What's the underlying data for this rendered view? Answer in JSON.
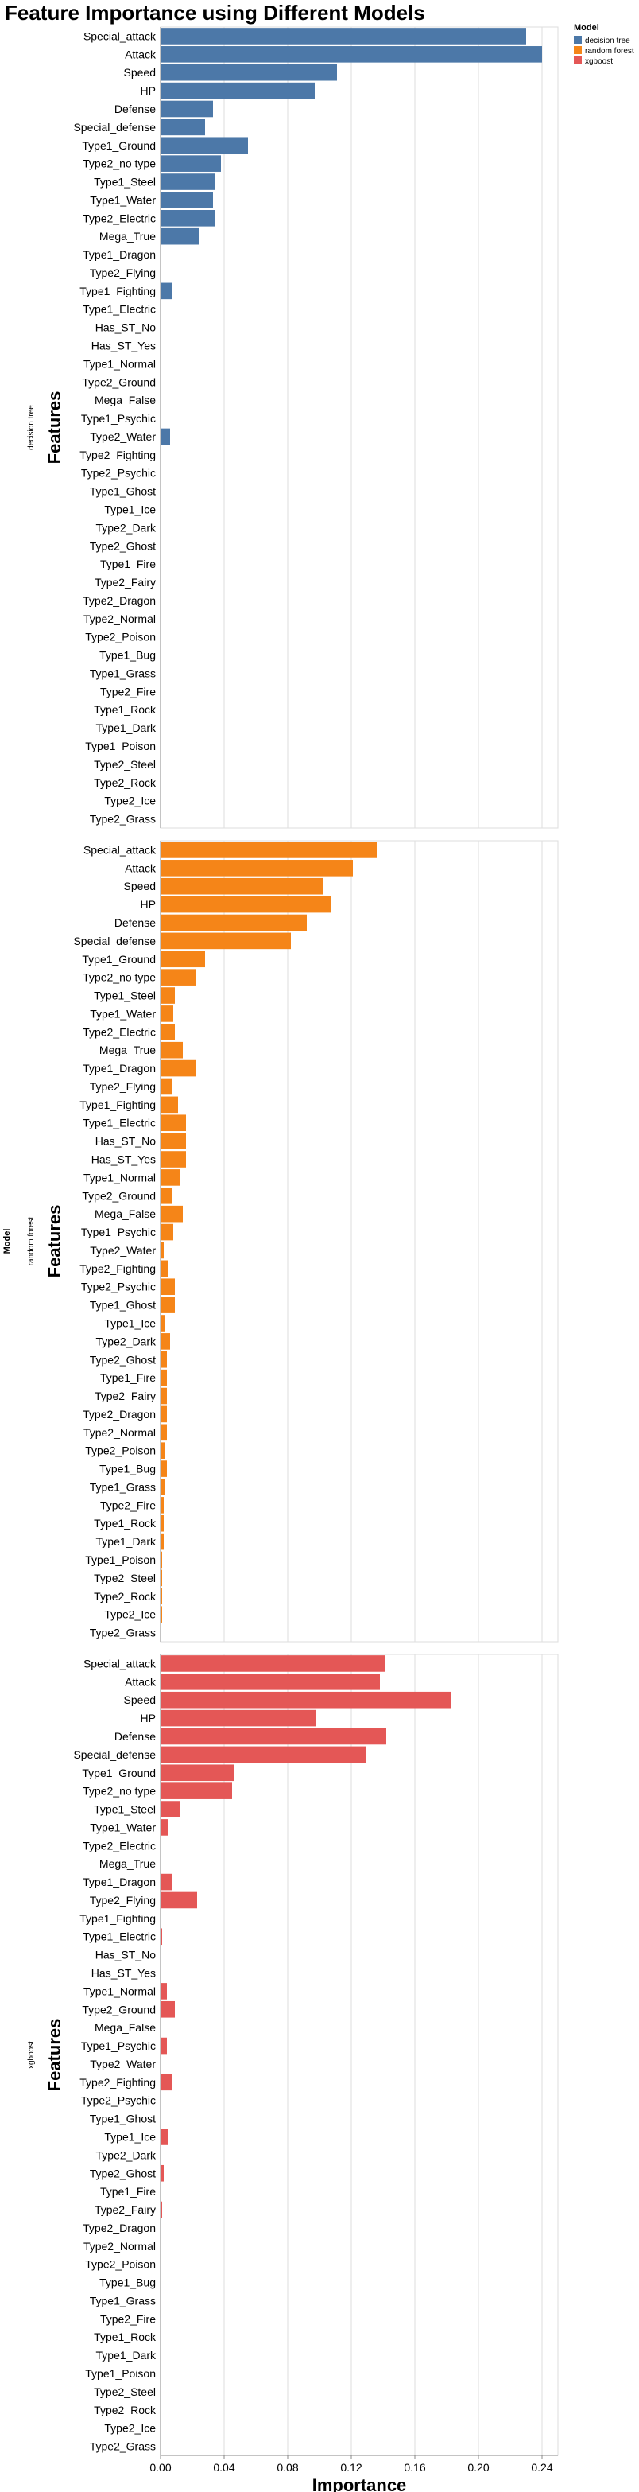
{
  "title": "Feature Importance using Different Models",
  "chart_data": {
    "type": "bar",
    "orientation": "horizontal",
    "xlabel": "Importance",
    "ylabel": "Features",
    "row_facet_title": "Model",
    "xlim": [
      0,
      0.25
    ],
    "xticks": [
      "0.00",
      "0.04",
      "0.08",
      "0.12",
      "0.16",
      "0.20",
      "0.24"
    ],
    "grid": true,
    "legend": {
      "title": "Model",
      "position": "top-right",
      "entries": [
        {
          "name": "decision tree",
          "color": "#4c78a8"
        },
        {
          "name": "random forest",
          "color": "#f58518"
        },
        {
          "name": "xgboost",
          "color": "#e45756"
        }
      ]
    },
    "facets": [
      {
        "model": "decision tree",
        "color": "#4c78a8",
        "features": [
          "Special_attack",
          "Attack",
          "Speed",
          "HP",
          "Defense",
          "Special_defense",
          "Type1_Ground",
          "Type2_no type",
          "Type1_Steel",
          "Type1_Water",
          "Type2_Electric",
          "Mega_True",
          "Type1_Dragon",
          "Type2_Flying",
          "Type1_Fighting",
          "Type1_Electric",
          "Has_ST_No",
          "Has_ST_Yes",
          "Type1_Normal",
          "Type2_Ground",
          "Mega_False",
          "Type1_Psychic",
          "Type2_Water",
          "Type2_Fighting",
          "Type2_Psychic",
          "Type1_Ghost",
          "Type1_Ice",
          "Type2_Dark",
          "Type2_Ghost",
          "Type1_Fire",
          "Type2_Fairy",
          "Type2_Dragon",
          "Type2_Normal",
          "Type2_Poison",
          "Type1_Bug",
          "Type1_Grass",
          "Type2_Fire",
          "Type1_Rock",
          "Type1_Dark",
          "Type1_Poison",
          "Type2_Steel",
          "Type2_Rock",
          "Type2_Ice",
          "Type2_Grass"
        ],
        "values": [
          0.23,
          0.24,
          0.111,
          0.097,
          0.033,
          0.028,
          0.055,
          0.038,
          0.034,
          0.033,
          0.034,
          0.024,
          0,
          0,
          0.007,
          0,
          0,
          0,
          0,
          0,
          0,
          0,
          0.006,
          0,
          0,
          0,
          0,
          0,
          0,
          0,
          0,
          0,
          0,
          0,
          0,
          0,
          0,
          0,
          0,
          0,
          0,
          0,
          0,
          0
        ]
      },
      {
        "model": "random forest",
        "color": "#f58518",
        "features": [
          "Special_attack",
          "Attack",
          "Speed",
          "HP",
          "Defense",
          "Special_defense",
          "Type1_Ground",
          "Type2_no type",
          "Type1_Steel",
          "Type1_Water",
          "Type2_Electric",
          "Mega_True",
          "Type1_Dragon",
          "Type2_Flying",
          "Type1_Fighting",
          "Type1_Electric",
          "Has_ST_No",
          "Has_ST_Yes",
          "Type1_Normal",
          "Type2_Ground",
          "Mega_False",
          "Type1_Psychic",
          "Type2_Water",
          "Type2_Fighting",
          "Type2_Psychic",
          "Type1_Ghost",
          "Type1_Ice",
          "Type2_Dark",
          "Type2_Ghost",
          "Type1_Fire",
          "Type2_Fairy",
          "Type2_Dragon",
          "Type2_Normal",
          "Type2_Poison",
          "Type1_Bug",
          "Type1_Grass",
          "Type2_Fire",
          "Type1_Rock",
          "Type1_Dark",
          "Type1_Poison",
          "Type2_Steel",
          "Type2_Rock",
          "Type2_Ice",
          "Type2_Grass"
        ],
        "values": [
          0.136,
          0.121,
          0.102,
          0.107,
          0.092,
          0.082,
          0.028,
          0.022,
          0.009,
          0.008,
          0.009,
          0.014,
          0.022,
          0.007,
          0.011,
          0.016,
          0.016,
          0.016,
          0.012,
          0.007,
          0.014,
          0.008,
          0.002,
          0.005,
          0.009,
          0.009,
          0.003,
          0.006,
          0.004,
          0.004,
          0.004,
          0.004,
          0.004,
          0.003,
          0.004,
          0.003,
          0.002,
          0.002,
          0.002,
          0.001,
          0.001,
          0.001,
          0.001,
          0.0005
        ]
      },
      {
        "model": "xgboost",
        "color": "#e45756",
        "features": [
          "Special_attack",
          "Attack",
          "Speed",
          "HP",
          "Defense",
          "Special_defense",
          "Type1_Ground",
          "Type2_no type",
          "Type1_Steel",
          "Type1_Water",
          "Type2_Electric",
          "Mega_True",
          "Type1_Dragon",
          "Type2_Flying",
          "Type1_Fighting",
          "Type1_Electric",
          "Has_ST_No",
          "Has_ST_Yes",
          "Type1_Normal",
          "Type2_Ground",
          "Mega_False",
          "Type1_Psychic",
          "Type2_Water",
          "Type2_Fighting",
          "Type2_Psychic",
          "Type1_Ghost",
          "Type1_Ice",
          "Type2_Dark",
          "Type2_Ghost",
          "Type1_Fire",
          "Type2_Fairy",
          "Type2_Dragon",
          "Type2_Normal",
          "Type2_Poison",
          "Type1_Bug",
          "Type1_Grass",
          "Type2_Fire",
          "Type1_Rock",
          "Type1_Dark",
          "Type1_Poison",
          "Type2_Steel",
          "Type2_Rock",
          "Type2_Ice",
          "Type2_Grass"
        ],
        "values": [
          0.141,
          0.138,
          0.183,
          0.098,
          0.142,
          0.129,
          0.046,
          0.045,
          0.012,
          0.005,
          0,
          0,
          0.007,
          0.023,
          0,
          0.001,
          0,
          0,
          0.004,
          0.009,
          0,
          0.004,
          0,
          0.007,
          0,
          0,
          0.005,
          0,
          0.002,
          0,
          0.001,
          0,
          0,
          0,
          0,
          0,
          0,
          0,
          0,
          0,
          0,
          0,
          0,
          0
        ]
      }
    ]
  }
}
